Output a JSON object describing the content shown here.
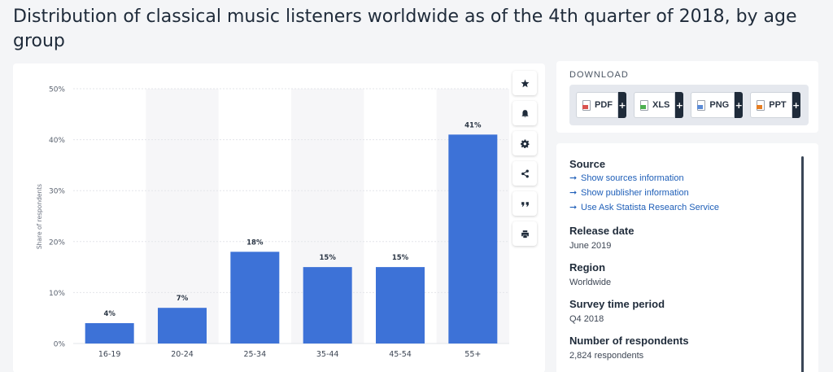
{
  "page": {
    "title": "Distribution of classical music listeners worldwide as of the 4th quarter of 2018, by age group"
  },
  "toolbar": {
    "icons": [
      "star-icon",
      "bell-icon",
      "gear-icon",
      "share-icon",
      "quote-icon",
      "print-icon"
    ]
  },
  "download": {
    "title": "DOWNLOAD",
    "buttons": [
      {
        "label": "PDF",
        "color": "#d9534f"
      },
      {
        "label": "XLS",
        "color": "#4caf50"
      },
      {
        "label": "PNG",
        "color": "#5b8bd6"
      },
      {
        "label": "PPT",
        "color": "#e67e22"
      }
    ]
  },
  "info": {
    "source_label": "Source",
    "links": [
      "Show sources information",
      "Show publisher information",
      "Use Ask Statista Research Service"
    ],
    "release_label": "Release date",
    "release_value": "June 2019",
    "region_label": "Region",
    "region_value": "Worldwide",
    "period_label": "Survey time period",
    "period_value": "Q4 2018",
    "respondents_label": "Number of respondents",
    "respondents_value": "2,824 respondents"
  },
  "colors": {
    "bar": "#3d72d7",
    "band": "#f6f6f8",
    "grid": "#e3e5ea",
    "link": "#1f5fb8"
  },
  "chart_data": {
    "type": "bar",
    "categories": [
      "16-19",
      "20-24",
      "25-34",
      "35-44",
      "45-54",
      "55+"
    ],
    "values": [
      4,
      7,
      18,
      15,
      15,
      41
    ],
    "value_labels": [
      "4%",
      "7%",
      "18%",
      "15%",
      "15%",
      "41%"
    ],
    "ylabel": "Share of respondents",
    "ylim": [
      0,
      50
    ],
    "yticks": [
      0,
      10,
      20,
      30,
      40,
      50
    ],
    "ytick_labels": [
      "0%",
      "10%",
      "20%",
      "30%",
      "40%",
      "50%"
    ],
    "grid": true,
    "legend": "none"
  }
}
